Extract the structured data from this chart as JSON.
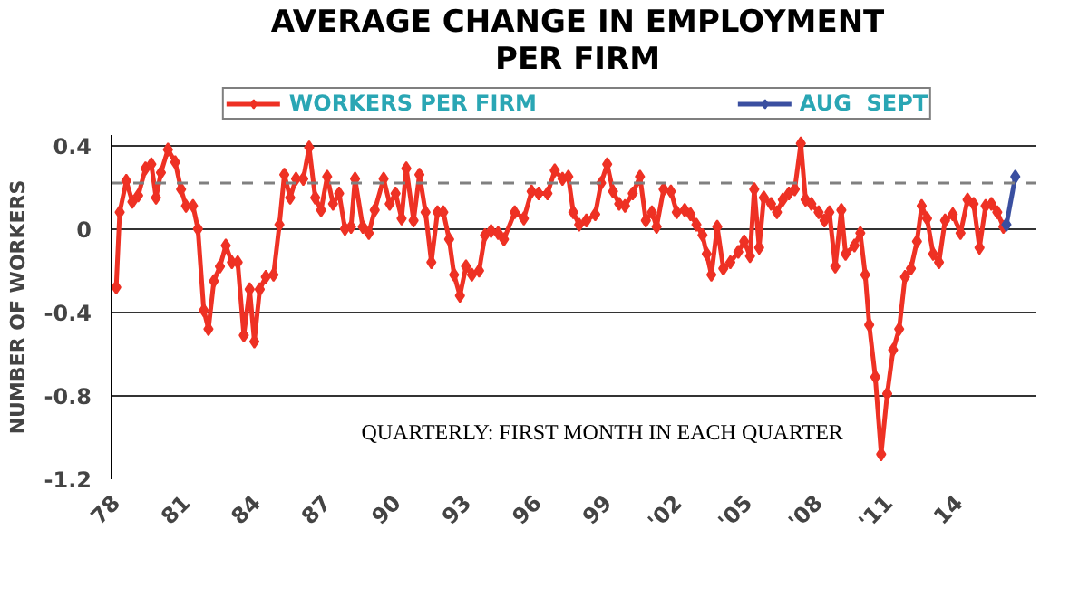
{
  "chart_data": {
    "type": "line",
    "title": "AVERAGE CHANGE IN EMPLOYMENT\nPER FIRM",
    "ylabel": "NUMBER OF WORKERS",
    "annotations": [
      "QUARTERLY:  FIRST MONTH IN EACH QUARTER"
    ],
    "xlim": [
      1977.8,
      2017.3
    ],
    "ylim": [
      -1.2,
      0.45
    ],
    "xticks": [
      {
        "value": 1978,
        "label": "78"
      },
      {
        "value": 1981,
        "label": "81"
      },
      {
        "value": 1984,
        "label": "84"
      },
      {
        "value": 1987,
        "label": "87"
      },
      {
        "value": 1990,
        "label": "90"
      },
      {
        "value": 1993,
        "label": "93"
      },
      {
        "value": 1996,
        "label": "96"
      },
      {
        "value": 1999,
        "label": "99"
      },
      {
        "value": 2002,
        "label": "'02"
      },
      {
        "value": 2005,
        "label": "'05"
      },
      {
        "value": 2008,
        "label": "'08"
      },
      {
        "value": 2011,
        "label": "'11"
      },
      {
        "value": 2014,
        "label": "14"
      }
    ],
    "yticks": [
      {
        "value": 0.4,
        "label": "0.4"
      },
      0,
      {
        "value": -0.4,
        "label": "-0.4"
      },
      {
        "value": -0.8,
        "label": "-0.8"
      },
      {
        "value": -1.2,
        "label": "-1.2"
      }
    ],
    "grid": "y",
    "legend": "top",
    "marker": "diamond",
    "line_style": "solid",
    "ref_lines": [
      {
        "axis": "y",
        "value": 0.22,
        "label": null,
        "color": "#808080",
        "line_style": "dashed"
      }
    ],
    "series": [
      {
        "name": "WORKERS PER FIRM",
        "color": "#ee3124",
        "x": [
          1978.0,
          1978.15,
          1978.43,
          1978.69,
          1978.94,
          1979.25,
          1979.5,
          1979.7,
          1979.91,
          1980.21,
          1980.52,
          1980.77,
          1980.98,
          1981.28,
          1981.49,
          1981.74,
          1981.94,
          1982.17,
          1982.43,
          1982.68,
          1982.94,
          1983.19,
          1983.45,
          1983.7,
          1983.9,
          1984.13,
          1984.39,
          1984.72,
          1984.97,
          1985.18,
          1985.43,
          1985.68,
          1985.99,
          1986.24,
          1986.5,
          1986.75,
          1987.01,
          1987.26,
          1987.52,
          1987.77,
          1988.03,
          1988.2,
          1988.53,
          1988.79,
          1989.04,
          1989.42,
          1989.68,
          1989.93,
          1990.19,
          1990.39,
          1990.7,
          1990.95,
          1991.21,
          1991.46,
          1991.72,
          1991.97,
          1992.22,
          1992.43,
          1992.68,
          1992.94,
          1993.19,
          1993.5,
          1993.75,
          1994.01,
          1994.31,
          1994.56,
          1995.02,
          1995.41,
          1995.74,
          1996.04,
          1996.42,
          1996.73,
          1997.06,
          1997.31,
          1997.52,
          1997.77,
          1998.08,
          1998.46,
          1998.71,
          1998.97,
          1999.22,
          1999.48,
          1999.73,
          2000.06,
          2000.37,
          2000.62,
          2000.88,
          2001.08,
          2001.38,
          2001.69,
          2001.94,
          2002.28,
          2002.53,
          2002.78,
          2003.04,
          2003.22,
          2003.42,
          2003.67,
          2003.93,
          2004.23,
          2004.57,
          2004.82,
          2005.07,
          2005.25,
          2005.46,
          2005.66,
          2005.97,
          2006.22,
          2006.47,
          2006.73,
          2006.98,
          2007.24,
          2007.44,
          2007.69,
          2008.0,
          2008.25,
          2008.46,
          2008.71,
          2008.97,
          2009.15,
          2009.53,
          2009.78,
          2009.99,
          2010.16,
          2010.42,
          2010.67,
          2010.93,
          2011.18,
          2011.44,
          2011.69,
          2011.94,
          2012.2,
          2012.4,
          2012.63,
          2012.89,
          2013.14,
          2013.4,
          2013.73,
          2014.06,
          2014.36,
          2014.62,
          2014.87,
          2015.13,
          2015.38,
          2015.63,
          2015.89
        ],
        "values": [
          -0.28,
          0.08,
          0.23,
          0.13,
          0.16,
          0.29,
          0.31,
          0.15,
          0.27,
          0.38,
          0.32,
          0.19,
          0.11,
          0.11,
          0.0,
          -0.39,
          -0.48,
          -0.25,
          -0.18,
          -0.08,
          -0.16,
          -0.16,
          -0.51,
          -0.29,
          -0.54,
          -0.29,
          -0.23,
          -0.22,
          0.02,
          0.26,
          0.15,
          0.24,
          0.24,
          0.39,
          0.15,
          0.09,
          0.25,
          0.12,
          0.17,
          0.0,
          0.01,
          0.24,
          0.01,
          -0.02,
          0.09,
          0.24,
          0.12,
          0.17,
          0.05,
          0.29,
          0.04,
          0.26,
          0.08,
          -0.16,
          0.08,
          0.08,
          -0.05,
          -0.22,
          -0.32,
          -0.18,
          -0.22,
          -0.2,
          -0.03,
          -0.01,
          -0.02,
          -0.05,
          0.08,
          0.05,
          0.18,
          0.17,
          0.17,
          0.28,
          0.24,
          0.25,
          0.08,
          0.02,
          0.04,
          0.07,
          0.22,
          0.31,
          0.18,
          0.12,
          0.11,
          0.17,
          0.25,
          0.04,
          0.08,
          0.01,
          0.19,
          0.18,
          0.08,
          0.09,
          0.07,
          0.02,
          -0.03,
          -0.12,
          -0.22,
          0.01,
          -0.19,
          -0.16,
          -0.11,
          -0.06,
          -0.13,
          0.19,
          -0.09,
          0.15,
          0.12,
          0.08,
          0.14,
          0.17,
          0.19,
          0.41,
          0.14,
          0.12,
          0.08,
          0.04,
          0.08,
          -0.18,
          0.09,
          -0.12,
          -0.08,
          -0.02,
          -0.22,
          -0.46,
          -0.71,
          -1.08,
          -0.79,
          -0.58,
          -0.48,
          -0.23,
          -0.19,
          -0.06,
          0.11,
          0.05,
          -0.12,
          -0.16,
          0.04,
          0.07,
          -0.02,
          0.14,
          0.12,
          -0.09,
          0.11,
          0.12,
          0.08,
          0.01
        ]
      },
      {
        "name": "AUG  SEPT",
        "color": "#3a4fa0",
        "x": [
          2016.02,
          2016.4
        ],
        "values": [
          0.02,
          0.25
        ]
      }
    ]
  }
}
